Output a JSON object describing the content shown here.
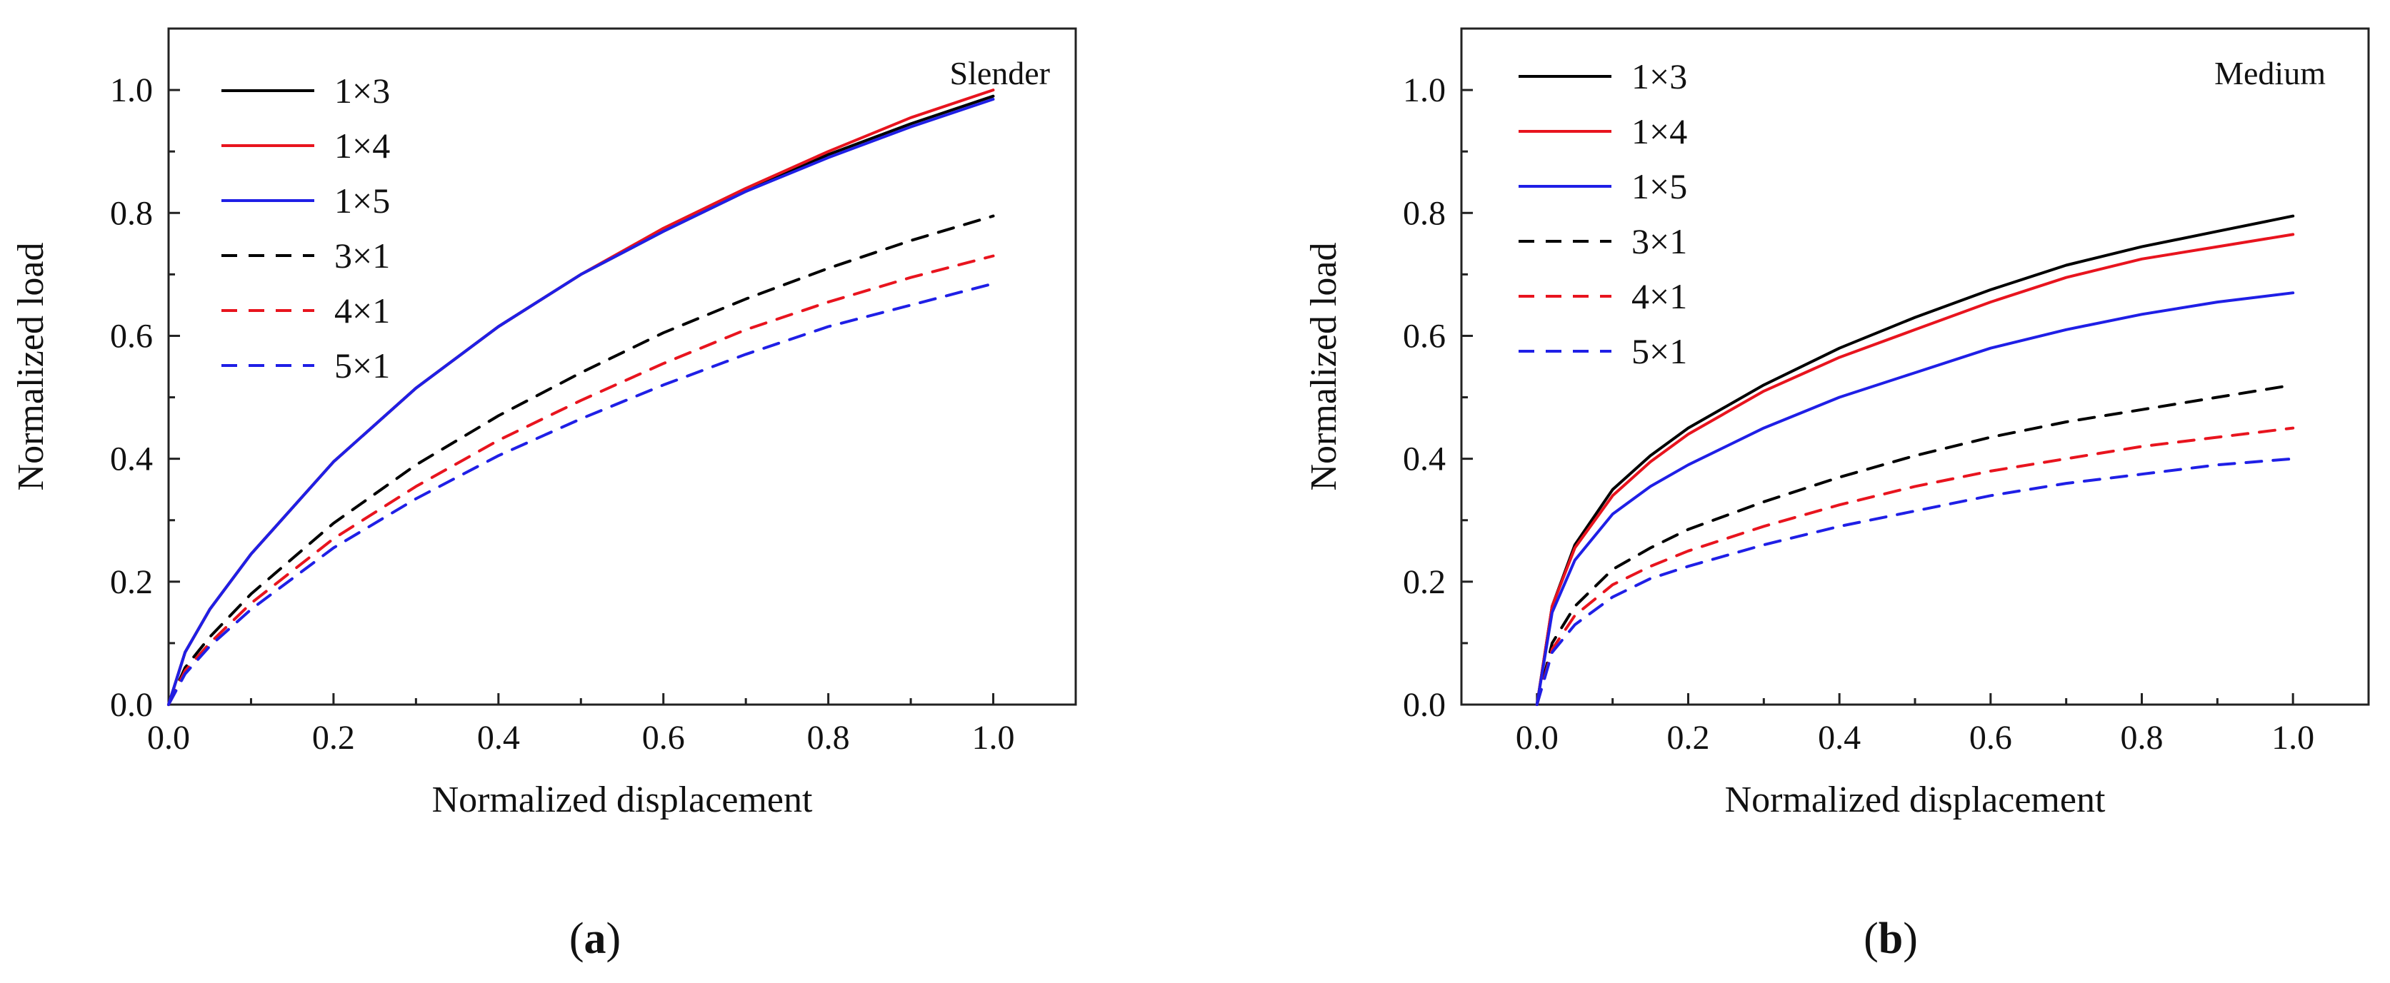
{
  "figure": {
    "caption_a": "a",
    "caption_b": "b"
  },
  "chart_data": [
    {
      "type": "line",
      "panel": "a",
      "annotation": "Slender",
      "xlabel": "Normalized displacement",
      "ylabel": "Normalized load",
      "xlim": [
        0.0,
        1.1
      ],
      "ylim": [
        0.0,
        1.1
      ],
      "xticks": [
        0.0,
        0.2,
        0.4,
        0.6,
        0.8,
        1.0
      ],
      "yticks": [
        0.0,
        0.2,
        0.4,
        0.6,
        0.8,
        1.0
      ],
      "xtick_labels": [
        "0.0",
        "0.2",
        "0.4",
        "0.6",
        "0.8",
        "1.0"
      ],
      "ytick_labels": [
        "0.0",
        "0.2",
        "0.4",
        "0.6",
        "0.8",
        "1.0"
      ],
      "legend_position": "top-left",
      "grid": false,
      "series": [
        {
          "name": "1×3",
          "color": "#000000",
          "dash": "solid",
          "x": [
            0,
            0.02,
            0.05,
            0.1,
            0.2,
            0.3,
            0.4,
            0.5,
            0.6,
            0.7,
            0.8,
            0.9,
            1.0
          ],
          "y": [
            0,
            0.085,
            0.155,
            0.245,
            0.395,
            0.515,
            0.615,
            0.7,
            0.77,
            0.835,
            0.895,
            0.945,
            0.99
          ]
        },
        {
          "name": "1×4",
          "color": "#e8141e",
          "dash": "solid",
          "x": [
            0,
            0.02,
            0.05,
            0.1,
            0.2,
            0.3,
            0.4,
            0.5,
            0.6,
            0.7,
            0.8,
            0.9,
            1.0
          ],
          "y": [
            0,
            0.085,
            0.155,
            0.245,
            0.395,
            0.515,
            0.615,
            0.7,
            0.775,
            0.84,
            0.9,
            0.955,
            1.0
          ]
        },
        {
          "name": "1×5",
          "color": "#1f1fe6",
          "dash": "solid",
          "x": [
            0,
            0.02,
            0.05,
            0.1,
            0.2,
            0.3,
            0.4,
            0.5,
            0.6,
            0.7,
            0.8,
            0.9,
            1.0
          ],
          "y": [
            0,
            0.085,
            0.155,
            0.245,
            0.395,
            0.515,
            0.615,
            0.7,
            0.77,
            0.835,
            0.89,
            0.94,
            0.985
          ]
        },
        {
          "name": "3×1",
          "color": "#000000",
          "dash": "dashed",
          "x": [
            0,
            0.02,
            0.05,
            0.1,
            0.2,
            0.3,
            0.4,
            0.5,
            0.6,
            0.7,
            0.8,
            0.9,
            1.0
          ],
          "y": [
            0,
            0.06,
            0.11,
            0.18,
            0.295,
            0.39,
            0.47,
            0.54,
            0.605,
            0.66,
            0.71,
            0.755,
            0.795
          ]
        },
        {
          "name": "4×1",
          "color": "#e8141e",
          "dash": "dashed",
          "x": [
            0,
            0.02,
            0.05,
            0.1,
            0.2,
            0.3,
            0.4,
            0.5,
            0.6,
            0.7,
            0.8,
            0.9,
            1.0
          ],
          "y": [
            0,
            0.055,
            0.1,
            0.165,
            0.27,
            0.355,
            0.43,
            0.495,
            0.555,
            0.61,
            0.655,
            0.695,
            0.73
          ]
        },
        {
          "name": "5×1",
          "color": "#1f1fe6",
          "dash": "dashed",
          "x": [
            0,
            0.02,
            0.05,
            0.1,
            0.2,
            0.3,
            0.4,
            0.5,
            0.6,
            0.7,
            0.8,
            0.9,
            1.0
          ],
          "y": [
            0,
            0.05,
            0.095,
            0.155,
            0.255,
            0.335,
            0.405,
            0.465,
            0.52,
            0.57,
            0.615,
            0.65,
            0.685
          ]
        }
      ]
    },
    {
      "type": "line",
      "panel": "b",
      "annotation": "Medium",
      "xlabel": "Normalized displacement",
      "ylabel": "Normalized load",
      "xlim": [
        -0.1,
        1.1
      ],
      "ylim": [
        0.0,
        1.1
      ],
      "xticks": [
        0.0,
        0.2,
        0.4,
        0.6,
        0.8,
        1.0
      ],
      "yticks": [
        0.0,
        0.2,
        0.4,
        0.6,
        0.8,
        1.0
      ],
      "xtick_labels": [
        "0.0",
        "0.2",
        "0.4",
        "0.6",
        "0.8",
        "1.0"
      ],
      "ytick_labels": [
        "0.0",
        "0.2",
        "0.4",
        "0.6",
        "0.8",
        "1.0"
      ],
      "legend_position": "top-left",
      "grid": false,
      "series": [
        {
          "name": "1×3",
          "color": "#000000",
          "dash": "solid",
          "x": [
            0,
            0.02,
            0.05,
            0.1,
            0.15,
            0.2,
            0.3,
            0.4,
            0.5,
            0.6,
            0.7,
            0.8,
            0.9,
            1.0
          ],
          "y": [
            0,
            0.16,
            0.26,
            0.35,
            0.405,
            0.45,
            0.52,
            0.58,
            0.63,
            0.675,
            0.715,
            0.745,
            0.77,
            0.795
          ]
        },
        {
          "name": "1×4",
          "color": "#e8141e",
          "dash": "solid",
          "x": [
            0,
            0.02,
            0.05,
            0.1,
            0.15,
            0.2,
            0.3,
            0.4,
            0.5,
            0.6,
            0.7,
            0.8,
            0.9,
            1.0
          ],
          "y": [
            0,
            0.16,
            0.255,
            0.34,
            0.395,
            0.44,
            0.51,
            0.565,
            0.61,
            0.655,
            0.695,
            0.725,
            0.745,
            0.765
          ]
        },
        {
          "name": "1×5",
          "color": "#1f1fe6",
          "dash": "solid",
          "x": [
            0,
            0.02,
            0.05,
            0.1,
            0.15,
            0.2,
            0.3,
            0.4,
            0.5,
            0.6,
            0.7,
            0.8,
            0.9,
            1.0
          ],
          "y": [
            0,
            0.15,
            0.235,
            0.31,
            0.355,
            0.39,
            0.45,
            0.5,
            0.54,
            0.58,
            0.61,
            0.635,
            0.655,
            0.67
          ]
        },
        {
          "name": "3×1",
          "color": "#000000",
          "dash": "dashed",
          "x": [
            0,
            0.02,
            0.05,
            0.1,
            0.15,
            0.2,
            0.3,
            0.4,
            0.5,
            0.6,
            0.7,
            0.8,
            0.9,
            1.0
          ],
          "y": [
            0,
            0.1,
            0.16,
            0.22,
            0.255,
            0.285,
            0.33,
            0.37,
            0.405,
            0.435,
            0.46,
            0.48,
            0.5,
            0.52
          ]
        },
        {
          "name": "4×1",
          "color": "#e8141e",
          "dash": "dashed",
          "x": [
            0,
            0.02,
            0.05,
            0.1,
            0.15,
            0.2,
            0.3,
            0.4,
            0.5,
            0.6,
            0.7,
            0.8,
            0.9,
            1.0
          ],
          "y": [
            0,
            0.09,
            0.145,
            0.195,
            0.225,
            0.25,
            0.29,
            0.325,
            0.355,
            0.38,
            0.4,
            0.42,
            0.435,
            0.45
          ]
        },
        {
          "name": "5×1",
          "color": "#1f1fe6",
          "dash": "dashed",
          "x": [
            0,
            0.02,
            0.05,
            0.1,
            0.15,
            0.2,
            0.3,
            0.4,
            0.5,
            0.6,
            0.7,
            0.8,
            0.9,
            1.0
          ],
          "y": [
            0,
            0.085,
            0.13,
            0.175,
            0.205,
            0.225,
            0.26,
            0.29,
            0.315,
            0.34,
            0.36,
            0.375,
            0.39,
            0.4
          ]
        }
      ]
    }
  ]
}
